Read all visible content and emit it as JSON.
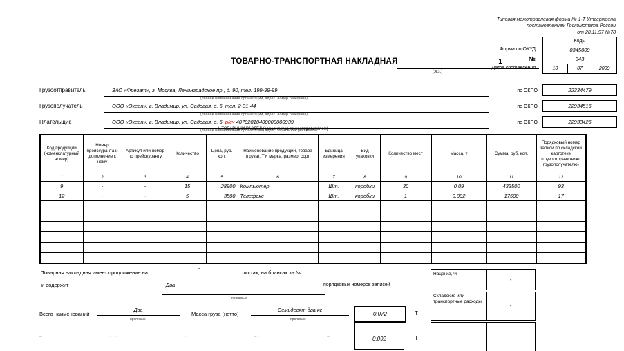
{
  "page": {
    "note_lines": [
      "Типовая межотраслевая форма  № 1-Т Утверждена",
      "постановлением Госкомстата  России",
      "от 28.11.97 №78"
    ],
    "title": "ТОВАРНО-ТРАНСПОРТНАЯ НАКЛАДНАЯ",
    "copy_number": "1",
    "copy_caption": "(экз.)"
  },
  "codes": {
    "header": "Коды",
    "okud_label": "Форма по ОКУД",
    "okud_value": "0345009",
    "number_label": "№",
    "number_value": "343",
    "date_label": "Дата составления",
    "date_parts": [
      "10",
      "07",
      "2009"
    ]
  },
  "parties": [
    {
      "label": "Грузоотправитель",
      "pre": "ЗАО «Фрегат», г. Москва, Ленинградское пр., д. 90, тел. 199-99-99",
      "red": "",
      "post": "",
      "caption": "(полное наименование организации, адрес, номер телефона)",
      "okpo_label": "по ОКПО",
      "okpo": "22334479"
    },
    {
      "label": "Грузополучатель",
      "pre": "ООО «Океан», г. Владимир, ул. Садовая, д. 5, тел. 2-31-44",
      "red": "",
      "post": "",
      "caption": "(полное наименование организации, адрес, номер телефона)",
      "okpo_label": "по ОКПО",
      "okpo": "22934516"
    },
    {
      "label": "Плательщик",
      "pre": "ООО «Океан», г. Владимир, ул. Садовая, д. 5, ",
      "red": "р/сч",
      "post": " 40702810400000000939",
      "caption": "(полное наименование организации, адрес, банковские реквизиты)",
      "okpo_label": "по ОКПО",
      "okpo": "22933426"
    }
  ],
  "section_title": "І. ТОВАРНЫЙ РАЗДЕЛ (заполняется грузоотправителем)",
  "table": {
    "headers": [
      "Код продукции (номенклатурный номер)",
      "Номер прейскуранта и дополнение к нему",
      "Артикул или номер по прейскуранту",
      "Количество",
      "Цена, руб. коп.",
      "Наименование продукции, товара (груза), ТУ, марка, размер, сорт",
      "Единица измерения",
      "Вид упаковки",
      "Количество мест",
      "Масса, т",
      "Сумма, руб. коп.",
      "Порядковый номер записи по складской картотеке (грузоотправителю, грузополучателю)"
    ],
    "col_numbers": [
      "1",
      "2",
      "3",
      "4",
      "5",
      "6",
      "7",
      "8",
      "9",
      "10",
      "11",
      "12"
    ],
    "rows": [
      [
        "9",
        "-",
        "-",
        "15",
        "28900",
        "Компьютер",
        "Шт.",
        "коробки",
        "30",
        "0,09",
        "433500",
        "93"
      ],
      [
        "12",
        "-",
        "-",
        "5",
        "3500",
        "Телефакс",
        "Шт.",
        "коробки",
        "1",
        "0,002",
        "17500",
        "17"
      ]
    ],
    "empty_rows": 6
  },
  "footer": {
    "continuation_text": "Товарная накладная имеет продолжение на",
    "continuation_value": "-",
    "sheets_text": "листах, на бланках за №",
    "contains_text": "и содержит",
    "contains_value": "Два",
    "records_text": "порядковых номеров записей",
    "propisyu_caption": "прописью",
    "markup_label": "Наценка, %",
    "markup_value": "-",
    "warehouse_label": "Складские или транспортные расходы",
    "warehouse_value": "-",
    "total_label": "Всего наименований",
    "total_value": "Два",
    "total_caption": "прописью",
    "mass_label": "Масса груза (нетто)",
    "mass_words": "Семьдесят два кг",
    "mass_caption": "прописью",
    "mass_value": "0,072",
    "mass_unit": "Т",
    "gross_value": "0,092",
    "gross_unit": "Т",
    "faint_marks": [
      "–",
      "· · ·",
      "·",
      "– ·",
      "–"
    ]
  }
}
